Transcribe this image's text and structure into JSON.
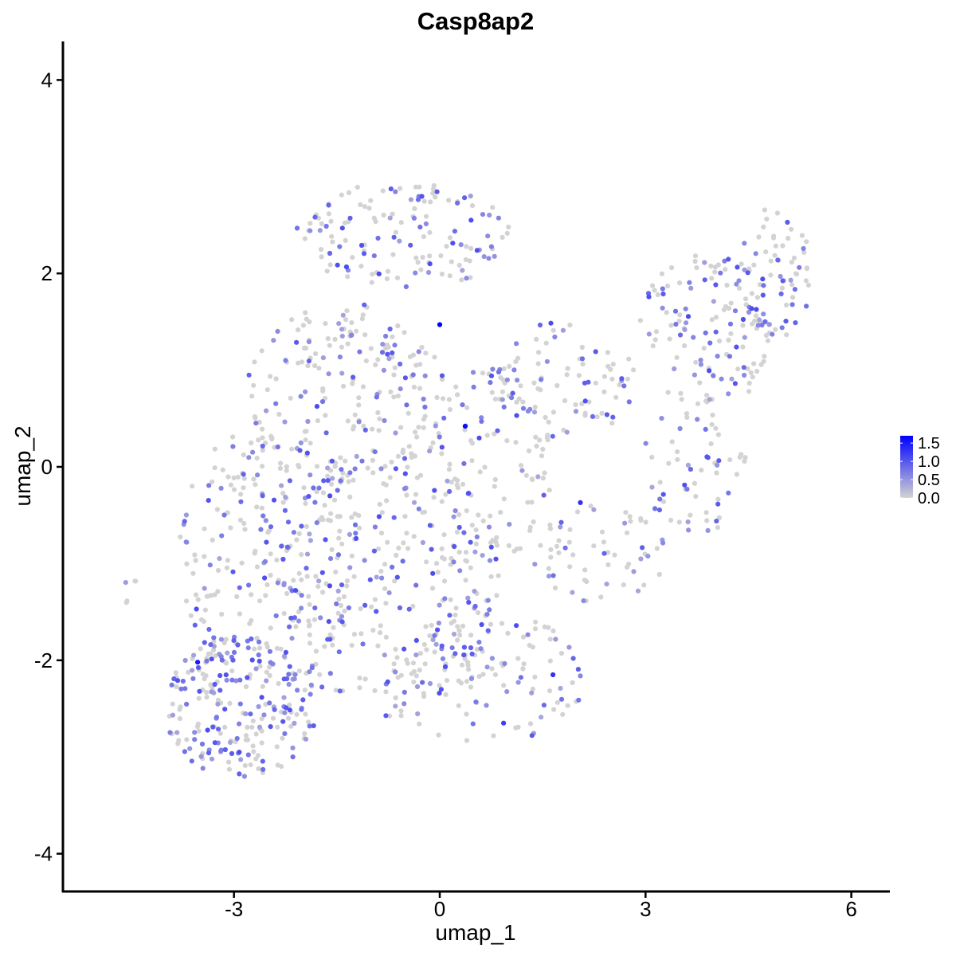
{
  "chart_data": {
    "type": "scatter",
    "title": "Casp8ap2",
    "xlabel": "umap_1",
    "ylabel": "umap_2",
    "xlim": [
      -5.4,
      6.5
    ],
    "ylim": [
      -4.4,
      4.4
    ],
    "x_ticks": [
      -3,
      0,
      3,
      6
    ],
    "x_tick_labels": [
      "-3",
      "0",
      "3",
      "6"
    ],
    "y_ticks": [
      -4,
      -2,
      0,
      2,
      4
    ],
    "y_tick_labels": [
      "-4",
      "-2",
      "0",
      "2",
      "4"
    ],
    "grid": false,
    "legend": {
      "placement": "right",
      "type": "colorbar",
      "ticks": [
        1.5,
        1.0,
        0.5,
        0.0
      ],
      "tick_labels": [
        "1.5",
        "1.0",
        "0.5",
        "0.0"
      ],
      "range": [
        0,
        1.7
      ],
      "low_color": "#d3d3d3",
      "high_color": "#0000ff"
    },
    "point_colors": {
      "zero": "#d3d3d3",
      "high": "#0000ff"
    },
    "highlighted_points": [
      {
        "x": 0.0,
        "y": 1.47,
        "value": 1.7
      },
      {
        "x": 0.37,
        "y": 0.42,
        "value": 1.6
      },
      {
        "x": -3.53,
        "y": -2.02,
        "value": 1.5
      },
      {
        "x": 1.65,
        "y": -2.15,
        "value": 1.3
      },
      {
        "x": 2.05,
        "y": -0.37,
        "value": 1.3
      },
      {
        "x": 0.93,
        "y": -2.65,
        "value": 1.2
      }
    ],
    "cloud_regions": [
      {
        "cx": -2.9,
        "cy": -2.5,
        "rx": 1.1,
        "ry": 0.75,
        "n": 230,
        "expressing_fraction": 0.55
      },
      {
        "cx": -2.5,
        "cy": -0.9,
        "rx": 1.3,
        "ry": 1.4,
        "n": 230,
        "expressing_fraction": 0.42
      },
      {
        "cx": -0.7,
        "cy": -1.2,
        "rx": 1.6,
        "ry": 1.4,
        "n": 250,
        "expressing_fraction": 0.38
      },
      {
        "cx": 0.7,
        "cy": -2.2,
        "rx": 1.4,
        "ry": 0.7,
        "n": 120,
        "expressing_fraction": 0.35
      },
      {
        "cx": -1.4,
        "cy": 0.7,
        "rx": 1.5,
        "ry": 1.0,
        "n": 200,
        "expressing_fraction": 0.35
      },
      {
        "cx": -0.5,
        "cy": 2.4,
        "rx": 1.6,
        "ry": 0.55,
        "n": 140,
        "expressing_fraction": 0.4
      },
      {
        "cx": 0.6,
        "cy": 0.0,
        "rx": 1.1,
        "ry": 1.0,
        "n": 110,
        "expressing_fraction": 0.25
      },
      {
        "cx": 1.8,
        "cy": 0.9,
        "rx": 1.1,
        "ry": 0.6,
        "n": 90,
        "expressing_fraction": 0.4
      },
      {
        "cx": 2.3,
        "cy": -0.9,
        "rx": 1.0,
        "ry": 0.5,
        "n": 60,
        "expressing_fraction": 0.3
      },
      {
        "cx": 3.9,
        "cy": 1.4,
        "rx": 1.0,
        "ry": 0.8,
        "n": 130,
        "expressing_fraction": 0.4
      },
      {
        "cx": 4.9,
        "cy": 2.0,
        "rx": 0.55,
        "ry": 0.7,
        "n": 70,
        "expressing_fraction": 0.35
      },
      {
        "cx": 3.7,
        "cy": 0.0,
        "rx": 0.8,
        "ry": 0.7,
        "n": 60,
        "expressing_fraction": 0.35
      },
      {
        "cx": -4.5,
        "cy": -1.3,
        "rx": 0.12,
        "ry": 0.15,
        "n": 5,
        "expressing_fraction": 0.6
      }
    ]
  }
}
